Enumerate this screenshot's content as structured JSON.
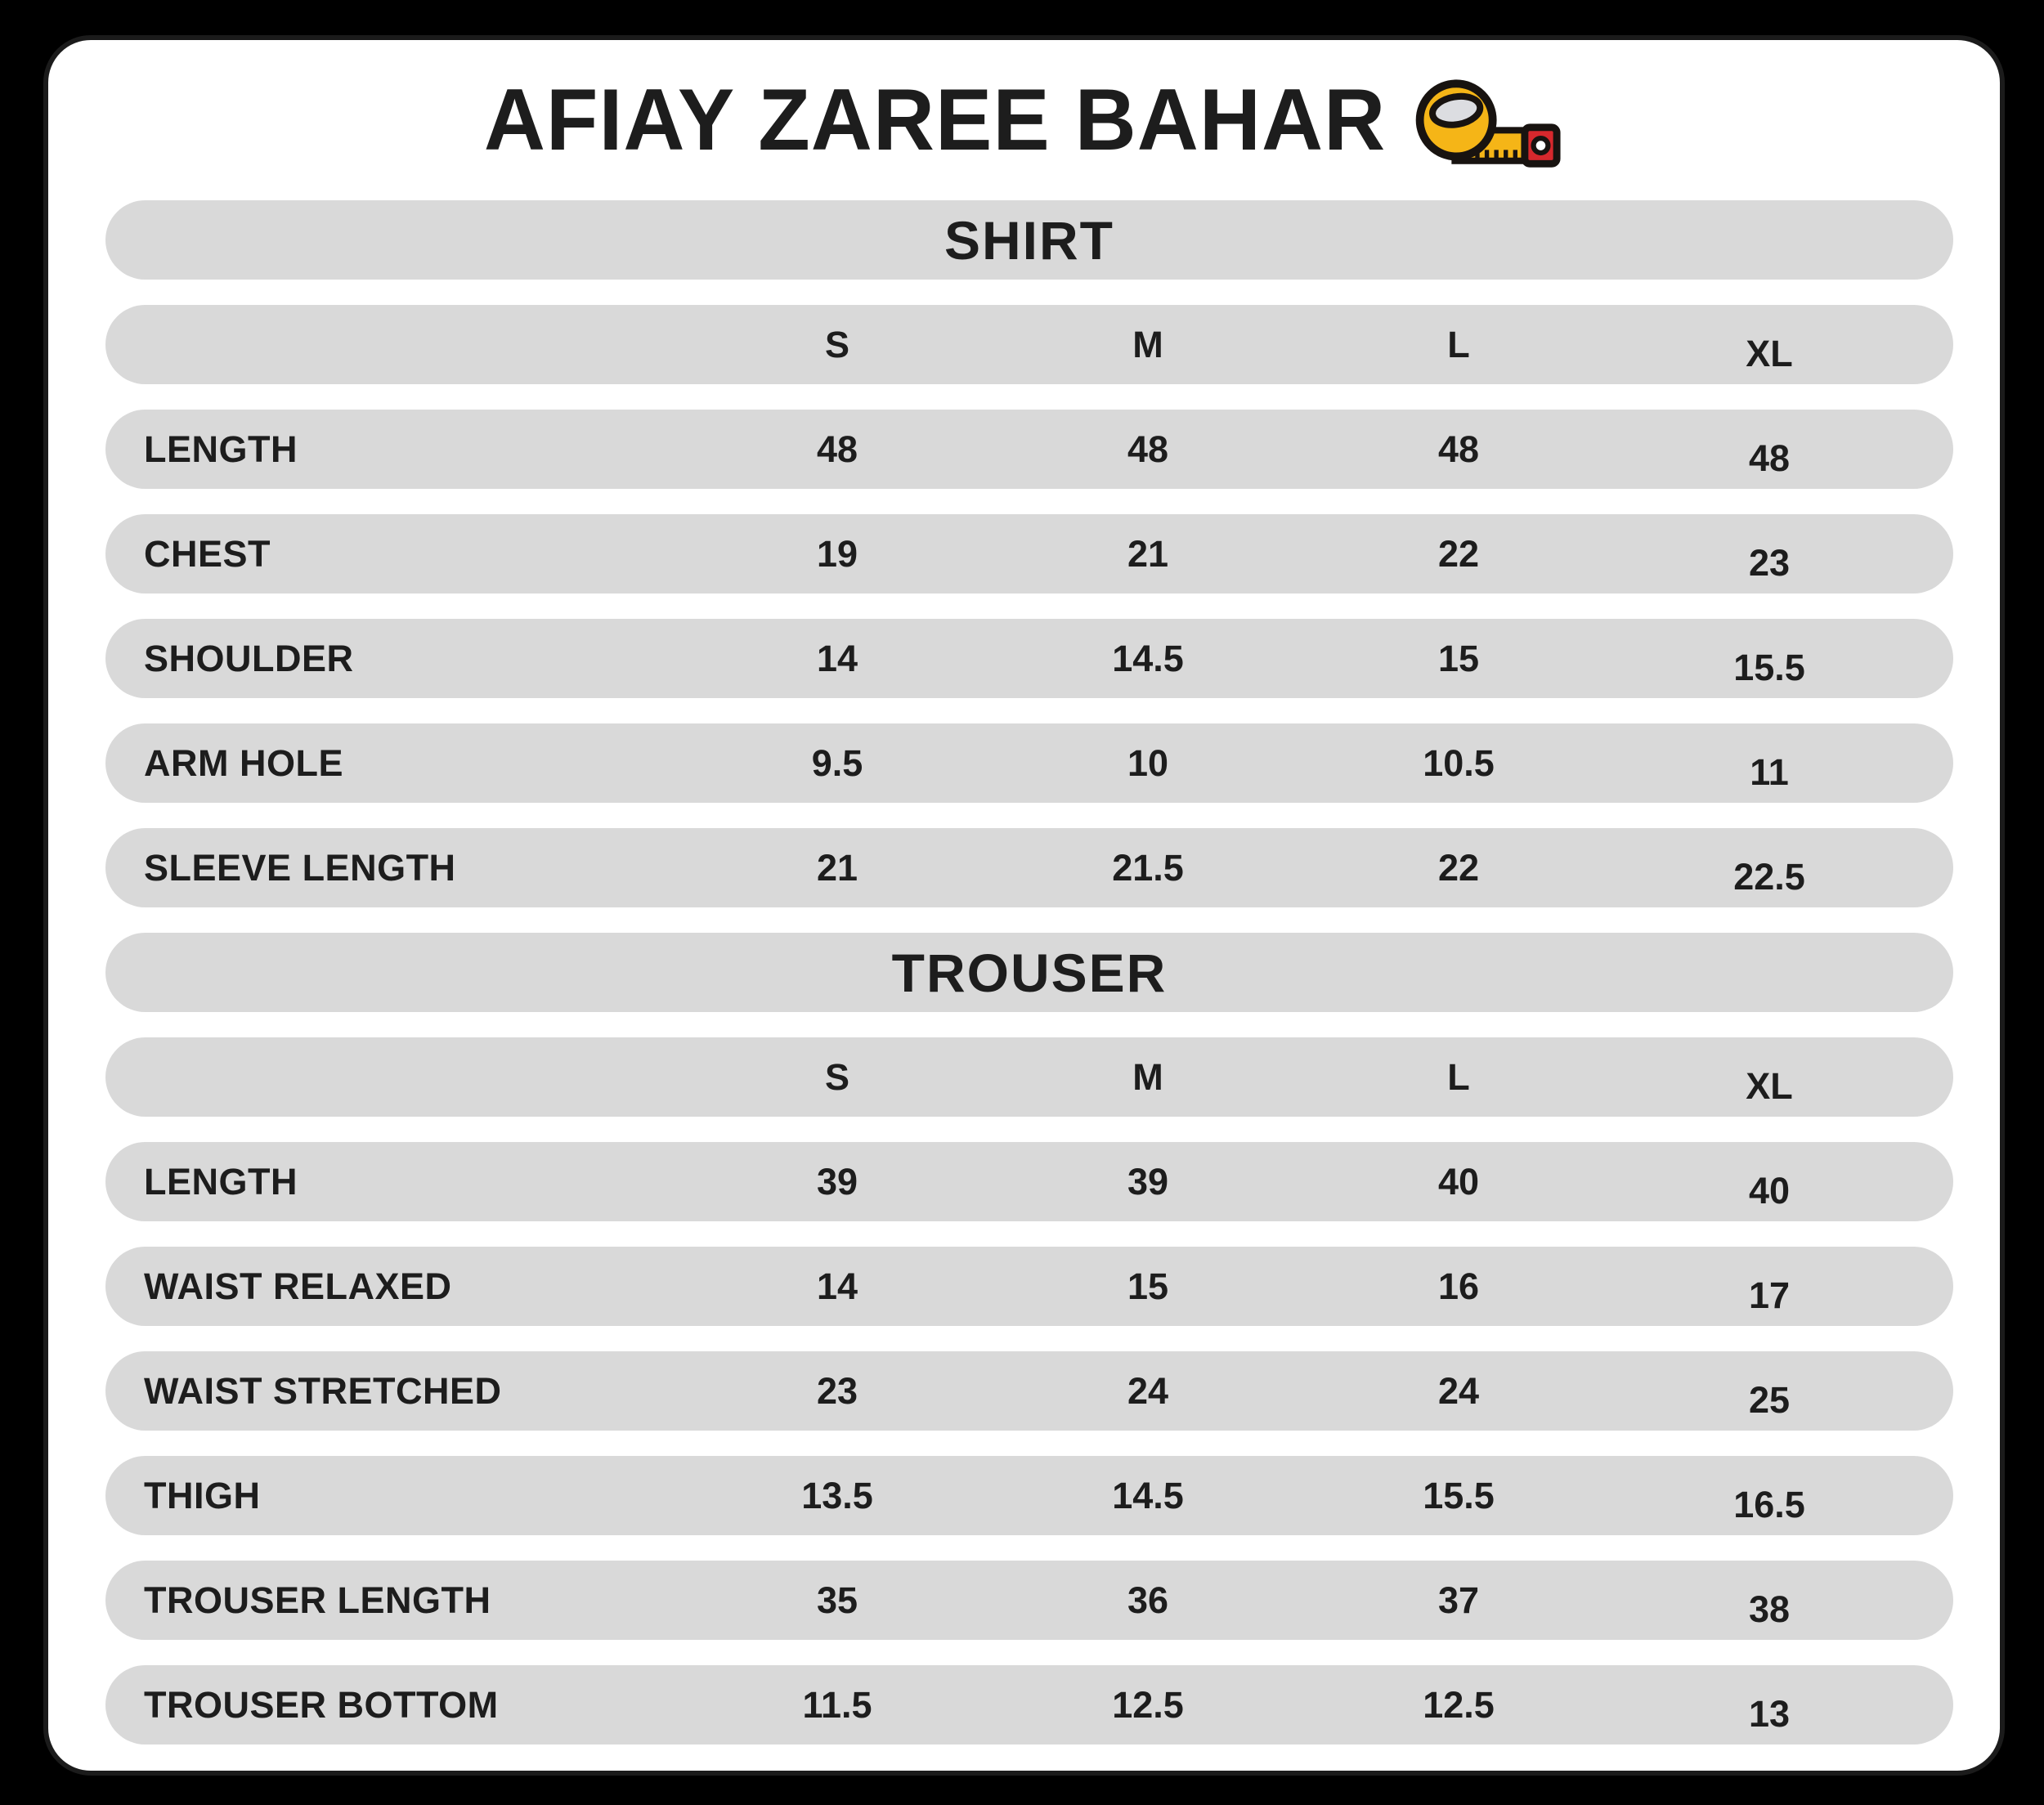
{
  "title": "AFIAY ZAREE BAHAR",
  "title_icon": "measuring-tape-icon",
  "colors": {
    "background": "#000000",
    "card": "#ffffff",
    "row_bar": "#d9d9d9",
    "text": "#1d1d1d",
    "tape_yellow": "#f5b517",
    "tape_red": "#d7282d",
    "tape_inner": "#dcdde1"
  },
  "chart_data": [
    {
      "type": "table",
      "title": "SHIRT",
      "columns": [
        "S",
        "M",
        "L",
        "XL"
      ],
      "rows": [
        {
          "label": "LENGTH",
          "values": [
            "48",
            "48",
            "48",
            "48"
          ]
        },
        {
          "label": "CHEST",
          "values": [
            "19",
            "21",
            "22",
            "23"
          ]
        },
        {
          "label": "SHOULDER",
          "values": [
            "14",
            "14.5",
            "15",
            "15.5"
          ]
        },
        {
          "label": "ARM HOLE",
          "values": [
            "9.5",
            "10",
            "10.5",
            "11"
          ]
        },
        {
          "label": "SLEEVE LENGTH",
          "values": [
            "21",
            "21.5",
            "22",
            "22.5"
          ]
        }
      ]
    },
    {
      "type": "table",
      "title": "TROUSER",
      "columns": [
        "S",
        "M",
        "L",
        "XL"
      ],
      "rows": [
        {
          "label": "LENGTH",
          "values": [
            "39",
            "39",
            "40",
            "40"
          ]
        },
        {
          "label": "WAIST RELAXED",
          "values": [
            "14",
            "15",
            "16",
            "17"
          ]
        },
        {
          "label": "WAIST STRETCHED",
          "values": [
            "23",
            "24",
            "24",
            "25"
          ]
        },
        {
          "label": "THIGH",
          "values": [
            "13.5",
            "14.5",
            "15.5",
            "16.5"
          ]
        },
        {
          "label": "TROUSER LENGTH",
          "values": [
            "35",
            "36",
            "37",
            "38"
          ]
        },
        {
          "label": "TROUSER BOTTOM",
          "values": [
            "11.5",
            "12.5",
            "12.5",
            "13"
          ]
        }
      ]
    }
  ]
}
